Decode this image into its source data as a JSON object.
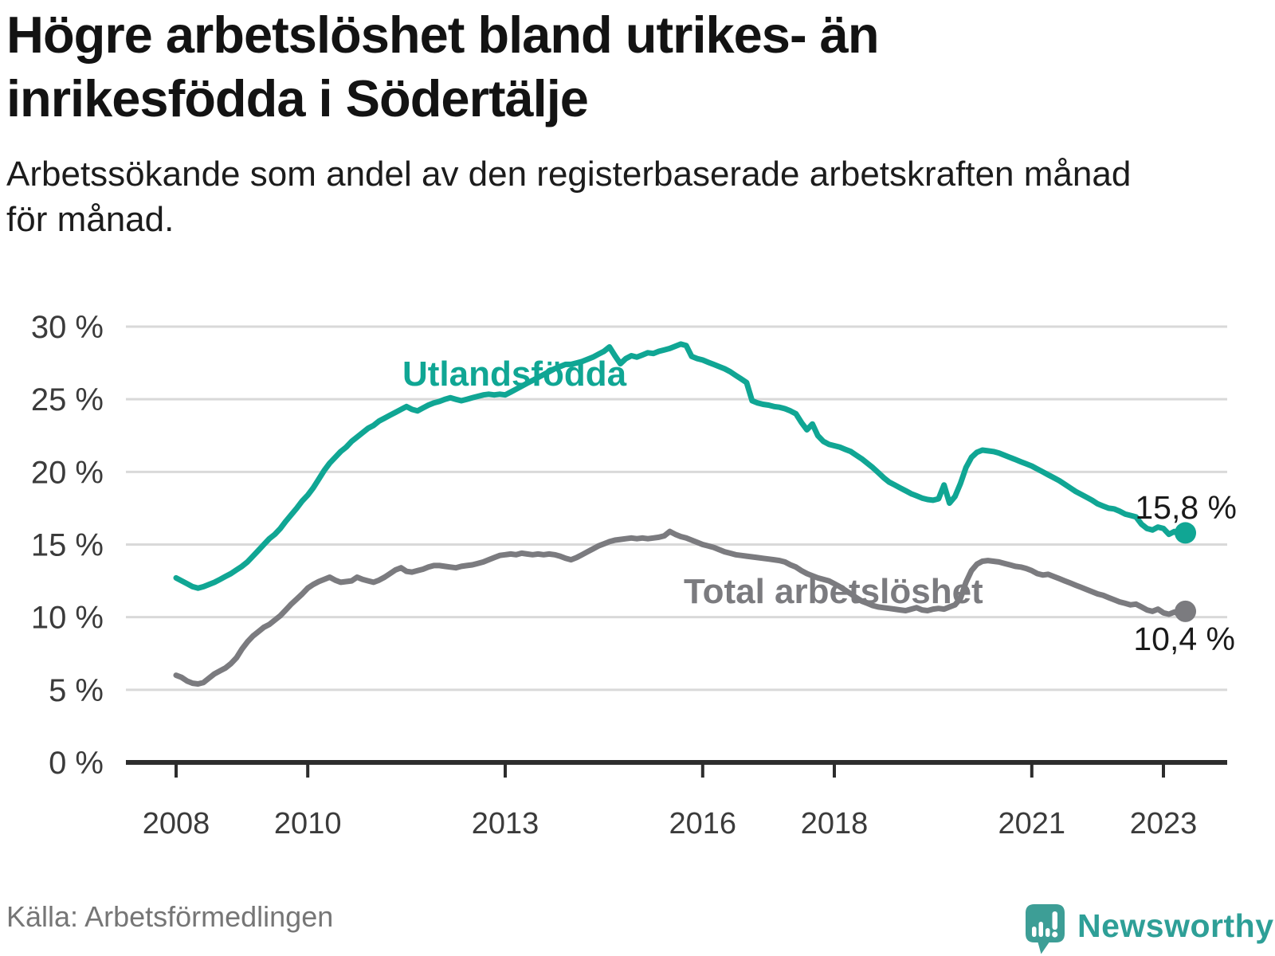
{
  "page": {
    "title": "Högre arbetslöshet bland utrikes- än\ninrikesfödda i Södertälje",
    "subtitle": "Arbetssökande som andel av den registerbaserade arbetskraften månad\nför månad.",
    "source": "Källa: Arbetsförmedlingen",
    "logo_text": "Newsworthy"
  },
  "colors": {
    "accent_teal": "#10a694",
    "series_gray": "#7b7b7f",
    "logo_teal": "#3d9e96",
    "grid": "#d9d9d9",
    "axis": "#2d2d2d",
    "axis_text": "#3b3b3b",
    "value_text": "#1a1a1a"
  },
  "chart_data": {
    "type": "line",
    "title": "Högre arbetslöshet bland utrikes- än inrikesfödda i Södertälje",
    "subtitle": "Arbetssökande som andel av den registerbaserade arbetskraften månad för månad.",
    "source": "Källa: Arbetsförmedlingen",
    "frequency": "monthly",
    "start": "2008-01",
    "end": "2023-05",
    "x_ticks": [
      2008,
      2010,
      2013,
      2016,
      2018,
      2021,
      2023
    ],
    "y_ticks": [
      0,
      5,
      10,
      15,
      20,
      25,
      30
    ],
    "y_tick_suffix": " %",
    "ylim": [
      0,
      30.5
    ],
    "grid": true,
    "legend": "inline-labels",
    "series": [
      {
        "name": "Utlandsfödda",
        "color": "#10a694",
        "end_label": "15,8 %",
        "end_value": 15.8,
        "values": [
          12.7,
          12.5,
          12.3,
          12.1,
          12.0,
          12.1,
          12.25,
          12.4,
          12.6,
          12.8,
          13.0,
          13.25,
          13.5,
          13.8,
          14.2,
          14.6,
          15.0,
          15.4,
          15.7,
          16.1,
          16.6,
          17.05,
          17.5,
          18.0,
          18.4,
          18.9,
          19.5,
          20.1,
          20.6,
          21.0,
          21.4,
          21.7,
          22.1,
          22.4,
          22.7,
          23.0,
          23.2,
          23.5,
          23.7,
          23.9,
          24.1,
          24.3,
          24.5,
          24.3,
          24.2,
          24.4,
          24.6,
          24.75,
          24.85,
          25.0,
          25.1,
          25.0,
          24.9,
          25.0,
          25.1,
          25.2,
          25.3,
          25.35,
          25.3,
          25.35,
          25.3,
          25.5,
          25.7,
          25.9,
          26.1,
          26.3,
          26.5,
          26.7,
          26.9,
          27.1,
          27.25,
          27.4,
          27.4,
          27.5,
          27.6,
          27.75,
          27.9,
          28.1,
          28.3,
          28.6,
          28.0,
          27.45,
          27.8,
          28.0,
          27.9,
          28.05,
          28.2,
          28.15,
          28.3,
          28.4,
          28.5,
          28.65,
          28.8,
          28.7,
          27.95,
          27.8,
          27.7,
          27.55,
          27.4,
          27.25,
          27.1,
          26.9,
          26.65,
          26.4,
          26.15,
          24.9,
          24.75,
          24.65,
          24.6,
          24.5,
          24.45,
          24.35,
          24.2,
          24.0,
          23.4,
          22.9,
          23.3,
          22.5,
          22.1,
          21.9,
          21.8,
          21.7,
          21.55,
          21.4,
          21.15,
          20.9,
          20.6,
          20.3,
          19.95,
          19.6,
          19.3,
          19.1,
          18.9,
          18.7,
          18.5,
          18.35,
          18.2,
          18.1,
          18.05,
          18.15,
          19.1,
          17.85,
          18.3,
          19.2,
          20.3,
          21.0,
          21.35,
          21.5,
          21.45,
          21.4,
          21.3,
          21.15,
          21.0,
          20.85,
          20.7,
          20.55,
          20.4,
          20.2,
          20.0,
          19.8,
          19.6,
          19.4,
          19.15,
          18.9,
          18.65,
          18.45,
          18.25,
          18.05,
          17.8,
          17.65,
          17.5,
          17.45,
          17.3,
          17.1,
          17.0,
          16.9,
          16.4,
          16.1,
          16.0,
          16.2,
          16.1,
          15.7,
          15.9,
          15.7,
          15.8
        ]
      },
      {
        "name": "Total arbetslöshet",
        "color": "#7b7b7f",
        "end_label": "10,4 %",
        "end_value": 10.4,
        "values": [
          6.0,
          5.85,
          5.6,
          5.45,
          5.4,
          5.5,
          5.8,
          6.1,
          6.3,
          6.5,
          6.8,
          7.2,
          7.8,
          8.3,
          8.7,
          9.0,
          9.3,
          9.5,
          9.8,
          10.1,
          10.5,
          10.9,
          11.25,
          11.6,
          12.0,
          12.25,
          12.45,
          12.6,
          12.75,
          12.55,
          12.4,
          12.45,
          12.5,
          12.75,
          12.6,
          12.5,
          12.4,
          12.55,
          12.75,
          13.0,
          13.25,
          13.4,
          13.15,
          13.1,
          13.2,
          13.3,
          13.45,
          13.55,
          13.55,
          13.5,
          13.45,
          13.4,
          13.5,
          13.55,
          13.6,
          13.7,
          13.8,
          13.95,
          14.1,
          14.25,
          14.3,
          14.35,
          14.3,
          14.4,
          14.35,
          14.3,
          14.35,
          14.3,
          14.35,
          14.3,
          14.2,
          14.05,
          13.95,
          14.1,
          14.3,
          14.5,
          14.7,
          14.9,
          15.05,
          15.2,
          15.3,
          15.35,
          15.4,
          15.45,
          15.4,
          15.45,
          15.4,
          15.45,
          15.5,
          15.6,
          15.9,
          15.7,
          15.55,
          15.45,
          15.3,
          15.15,
          15.0,
          14.9,
          14.8,
          14.65,
          14.5,
          14.4,
          14.3,
          14.25,
          14.2,
          14.15,
          14.1,
          14.05,
          14.0,
          13.95,
          13.9,
          13.8,
          13.6,
          13.45,
          13.2,
          13.0,
          12.85,
          12.7,
          12.6,
          12.5,
          12.3,
          12.1,
          11.85,
          11.6,
          11.35,
          11.1,
          10.95,
          10.8,
          10.7,
          10.65,
          10.6,
          10.55,
          10.5,
          10.45,
          10.55,
          10.65,
          10.5,
          10.45,
          10.55,
          10.6,
          10.55,
          10.7,
          10.85,
          11.3,
          12.4,
          13.2,
          13.65,
          13.85,
          13.9,
          13.85,
          13.8,
          13.7,
          13.6,
          13.5,
          13.45,
          13.35,
          13.2,
          13.0,
          12.9,
          12.95,
          12.8,
          12.65,
          12.5,
          12.35,
          12.2,
          12.05,
          11.9,
          11.75,
          11.6,
          11.5,
          11.35,
          11.2,
          11.05,
          10.95,
          10.85,
          10.9,
          10.7,
          10.5,
          10.4,
          10.55,
          10.3,
          10.2,
          10.35,
          10.2,
          10.4
        ]
      }
    ]
  }
}
